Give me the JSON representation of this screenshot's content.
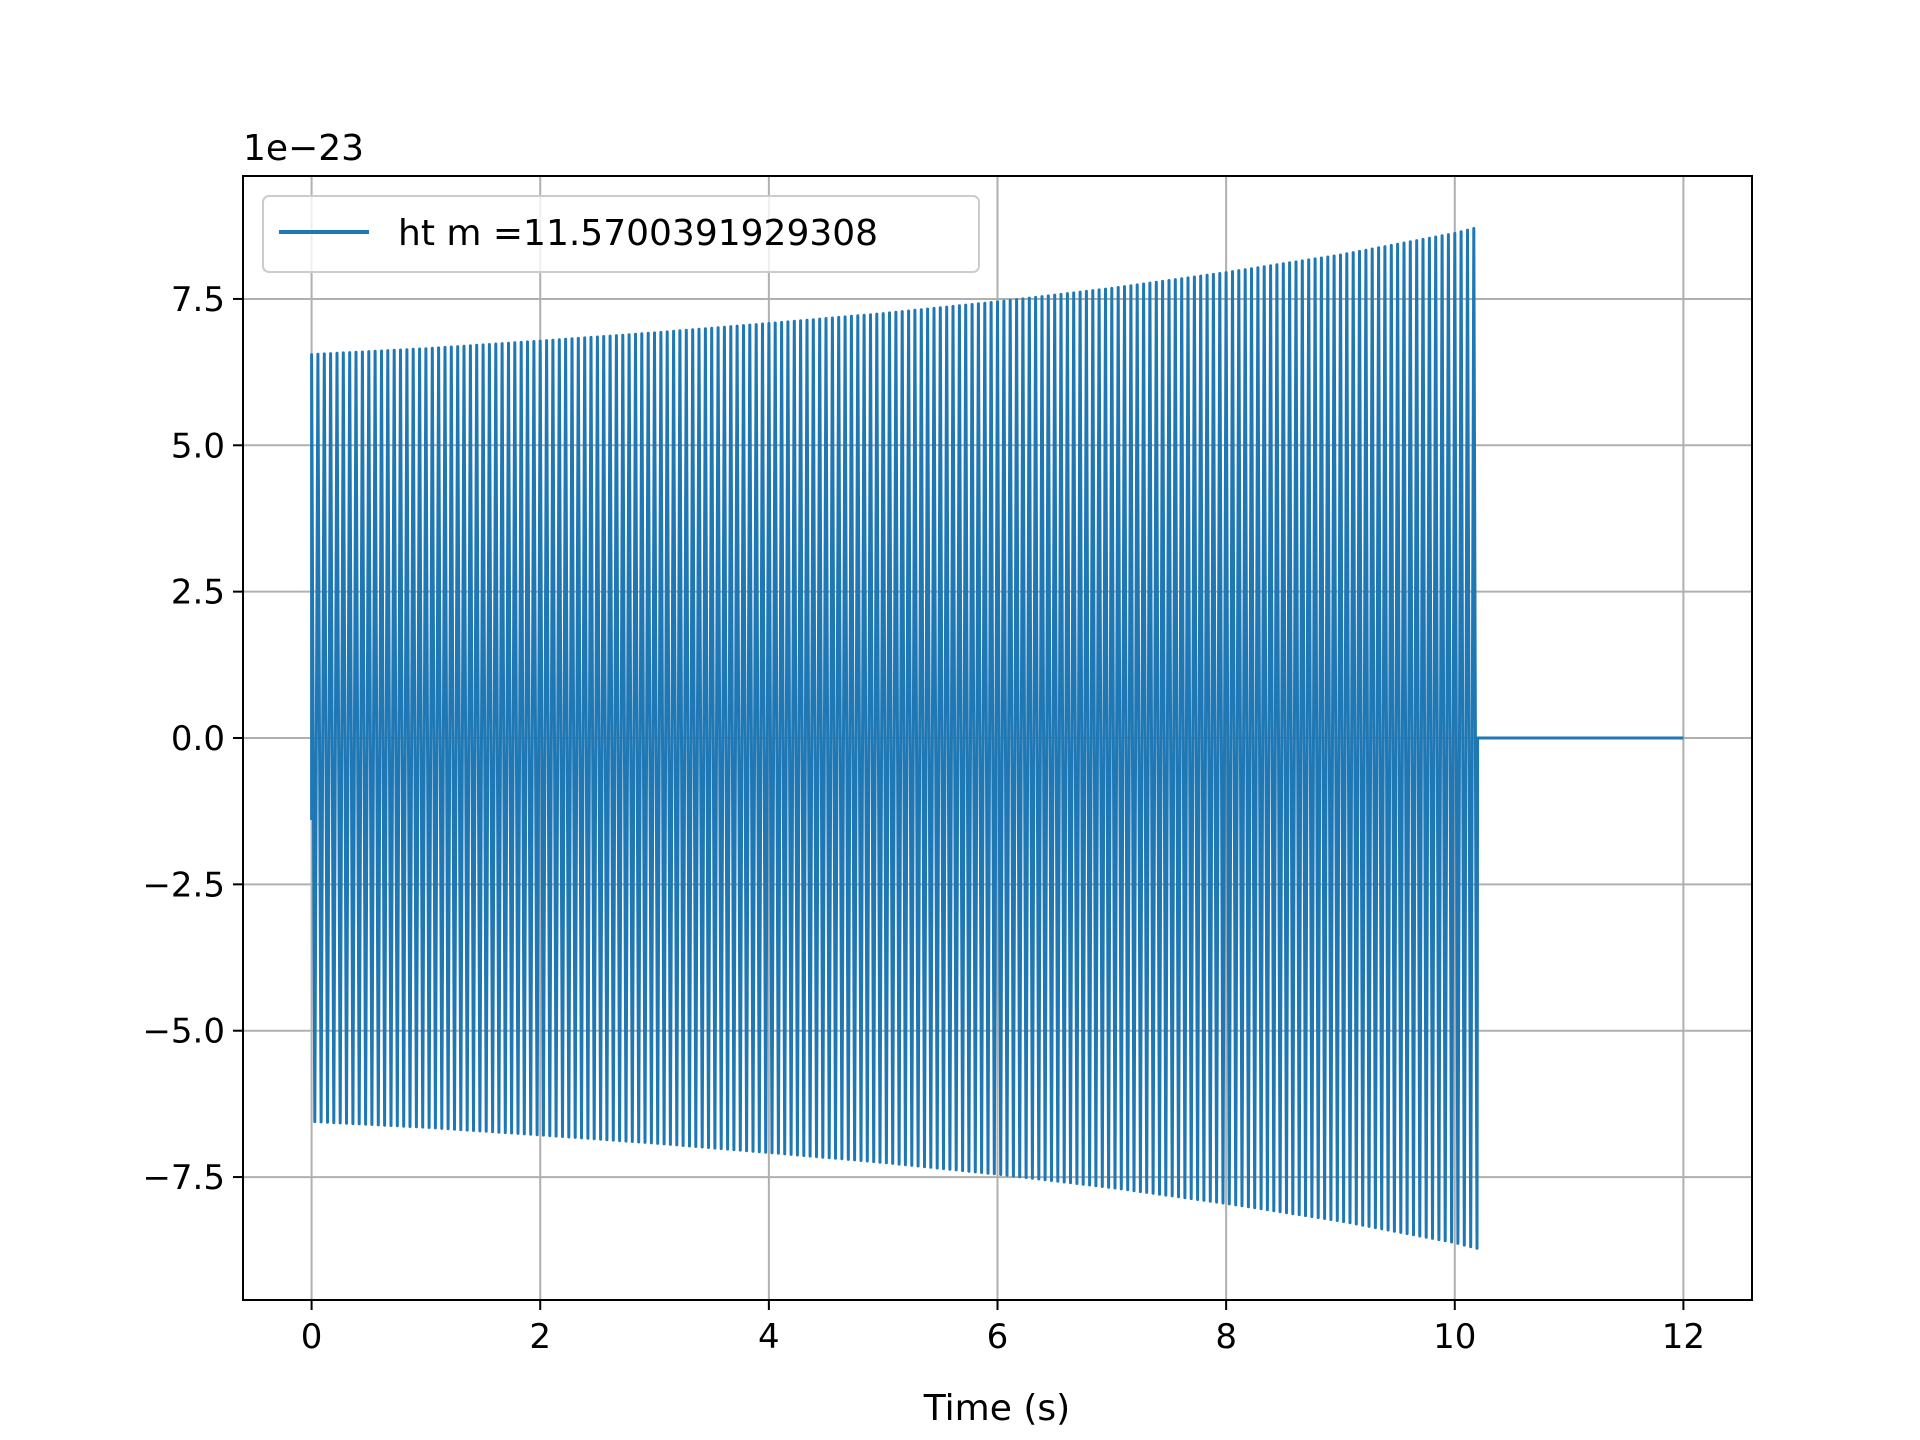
{
  "chart_data": {
    "type": "line",
    "title": "",
    "xlabel": "Time (s)",
    "ylabel": "",
    "y_offset_label": "1e−23",
    "xlim": [
      -0.6,
      12.6
    ],
    "ylim": [
      -9.6,
      9.6
    ],
    "xticks": [
      0,
      2,
      4,
      6,
      8,
      10,
      12
    ],
    "xtick_labels": [
      "0",
      "2",
      "4",
      "6",
      "8",
      "10",
      "12"
    ],
    "yticks": [
      -7.5,
      -5.0,
      -2.5,
      0.0,
      2.5,
      5.0,
      7.5
    ],
    "ytick_labels": [
      "−7.5",
      "−5.0",
      "−2.5",
      "0.0",
      "2.5",
      "5.0",
      "7.5"
    ],
    "grid": true,
    "legend_position": "top-left",
    "series": [
      {
        "name": "ht m =11.5700391929308",
        "color": "#1f77b4",
        "signal_start": 0.0,
        "signal_end": 10.2,
        "flat_end": 12.0,
        "envelope_t": [
          0,
          1,
          2,
          3,
          4,
          5,
          6,
          7,
          8,
          9,
          10,
          10.2
        ],
        "envelope_amp": [
          6.55,
          6.65,
          6.78,
          6.92,
          7.08,
          7.25,
          7.45,
          7.68,
          7.95,
          8.25,
          8.62,
          8.72
        ],
        "start_value": -1.4,
        "cycles_per_second": 18
      }
    ]
  }
}
